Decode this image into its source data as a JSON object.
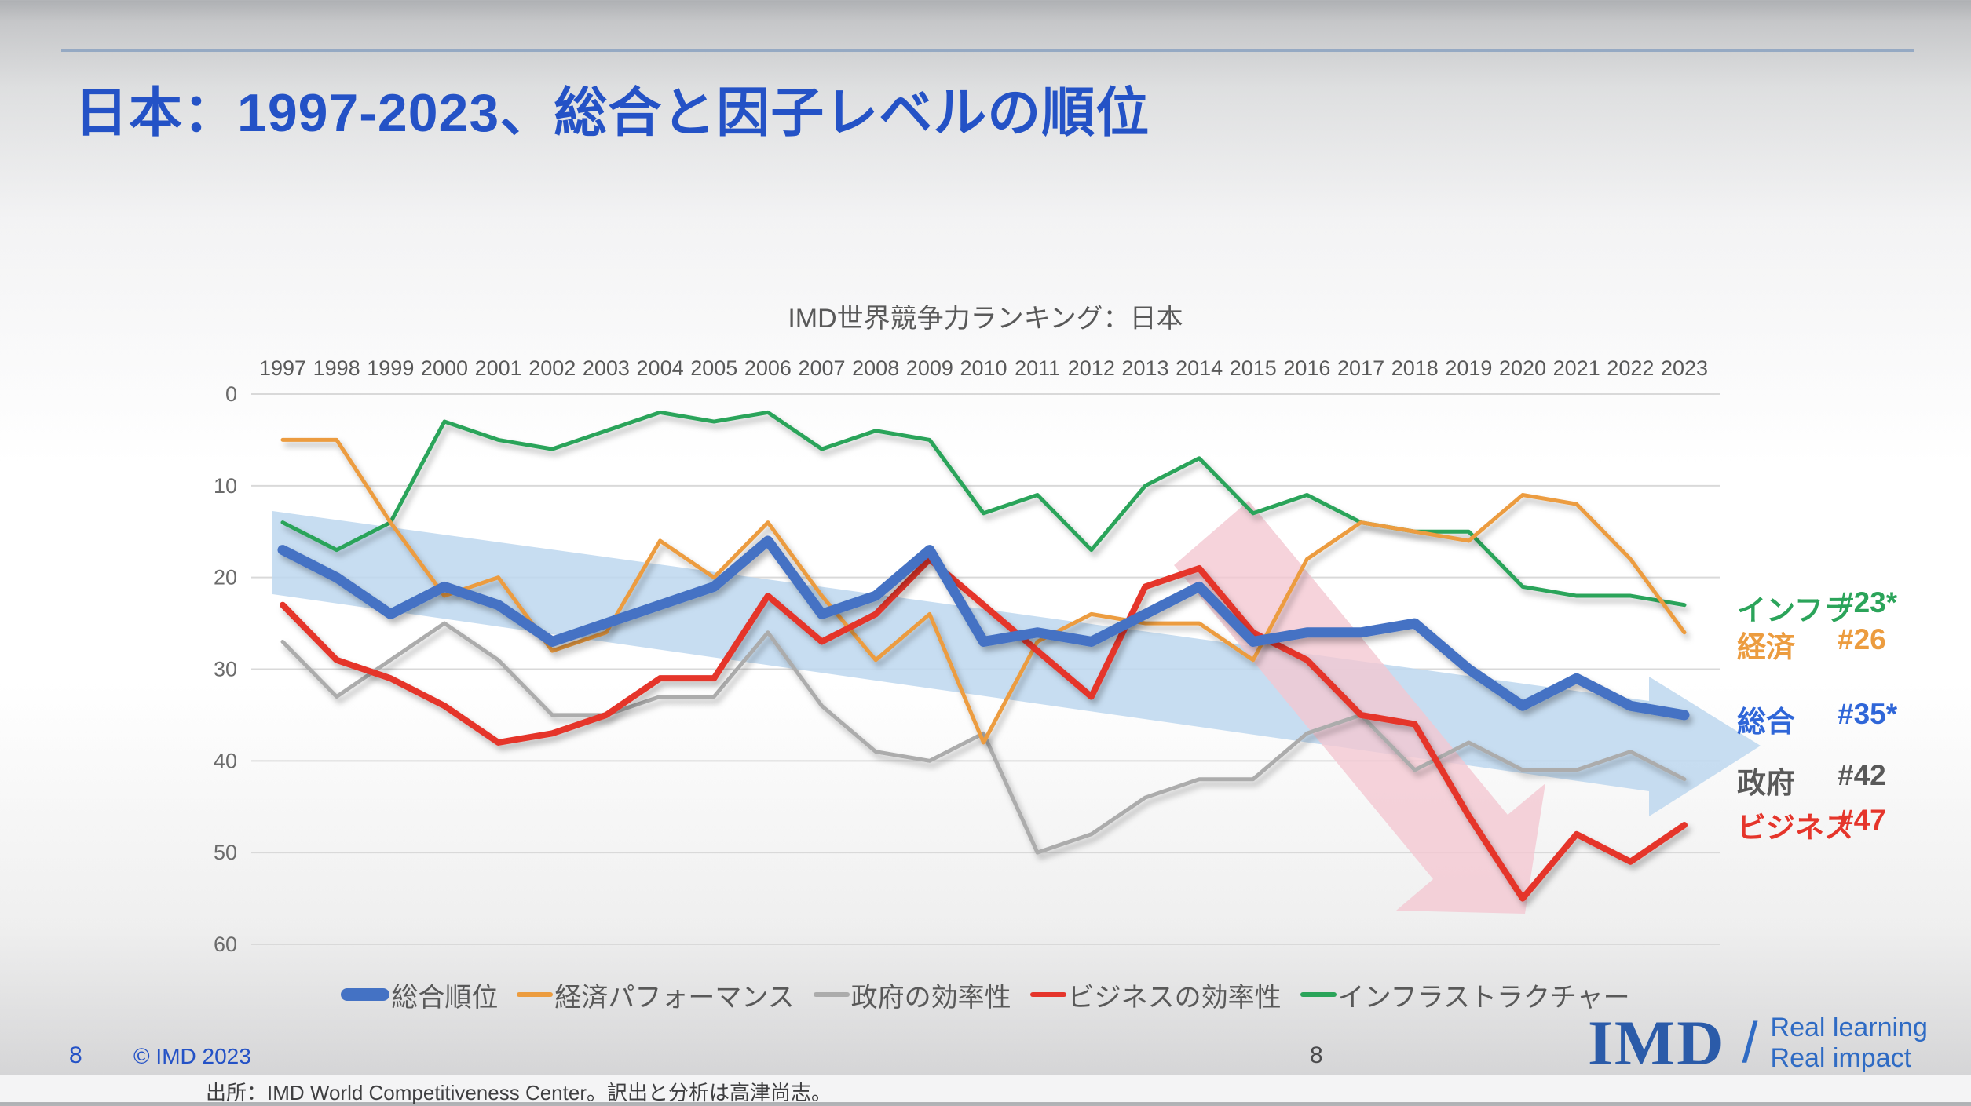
{
  "slide": {
    "title": "日本：1997-2023、総合と因子レベルの順位",
    "page_number_left": "8",
    "page_number_center": "8",
    "copyright": "© IMD 2023",
    "source": "出所：IMD World Competitiveness Center。訳出と分析は高津尚志。",
    "logo": {
      "text": "IMD",
      "slash": "/",
      "tagline_line1": "Real learning",
      "tagline_line2": "Real impact"
    },
    "title_color": "#2452c6"
  },
  "chart_data": {
    "type": "line",
    "title": "IMD世界競争力ランキング：日本",
    "x": [
      1997,
      1998,
      1999,
      2000,
      2001,
      2002,
      2003,
      2004,
      2005,
      2006,
      2007,
      2008,
      2009,
      2010,
      2011,
      2012,
      2013,
      2014,
      2015,
      2016,
      2017,
      2018,
      2019,
      2020,
      2021,
      2022,
      2023
    ],
    "y_axis": {
      "ticks": [
        0,
        10,
        20,
        30,
        40,
        50,
        60
      ],
      "min": 0,
      "max": 60,
      "inverted": true,
      "grid": true,
      "note": "lower number = better rank"
    },
    "series": [
      {
        "name": "総合順位",
        "color": "#4472c4",
        "width": 13,
        "values": [
          17,
          20,
          24,
          21,
          23,
          27,
          25,
          23,
          21,
          16,
          24,
          22,
          17,
          27,
          26,
          27,
          24,
          21,
          27,
          26,
          26,
          25,
          30,
          34,
          31,
          34,
          35
        ]
      },
      {
        "name": "経済パフォーマンス",
        "color": "#ec9c3f",
        "width": 5,
        "values": [
          5,
          5,
          14,
          22,
          20,
          28,
          26,
          16,
          20,
          14,
          22,
          29,
          24,
          38,
          27,
          24,
          25,
          25,
          29,
          18,
          14,
          15,
          16,
          11,
          12,
          18,
          26
        ]
      },
      {
        "name": "政府の効率性",
        "color": "#acacac",
        "width": 5,
        "values": [
          27,
          33,
          29,
          25,
          29,
          35,
          35,
          33,
          33,
          26,
          34,
          39,
          40,
          37,
          50,
          48,
          44,
          42,
          42,
          37,
          35,
          41,
          38,
          41,
          41,
          39,
          42
        ]
      },
      {
        "name": "ビジネスの効率性",
        "color": "#e5352b",
        "width": 8,
        "values": [
          23,
          29,
          31,
          34,
          38,
          37,
          35,
          31,
          31,
          22,
          27,
          24,
          18,
          23,
          28,
          33,
          21,
          19,
          26,
          29,
          35,
          36,
          46,
          55,
          48,
          51,
          47
        ]
      },
      {
        "name": "インフラストラクチャー",
        "color": "#2ba45a",
        "width": 5,
        "values": [
          14,
          17,
          14,
          3,
          5,
          6,
          4,
          2,
          3,
          2,
          6,
          4,
          5,
          13,
          11,
          17,
          10,
          7,
          13,
          11,
          14,
          15,
          15,
          21,
          22,
          22,
          23
        ]
      }
    ],
    "legend_position": "bottom",
    "end_labels": [
      {
        "label": "インフラ",
        "value": "#23*",
        "color": "#2ba45a"
      },
      {
        "label": "経済",
        "value": "#26",
        "color": "#ec9c3f"
      },
      {
        "label": "総合",
        "value": "#35*",
        "color": "#2f66d8"
      },
      {
        "label": "政府",
        "value": "#42",
        "color": "#595959"
      },
      {
        "label": "ビジネス",
        "value": "#47",
        "color": "#e5352b"
      }
    ],
    "annotations": {
      "blue_trend_arrow_color": "#bdd7ee",
      "pink_drop_arrow_color": "#f4c7d1"
    },
    "axis_text_color": "#6b6b6b",
    "year_text_color": "#595959",
    "gridline_color": "#d9d9d9"
  }
}
